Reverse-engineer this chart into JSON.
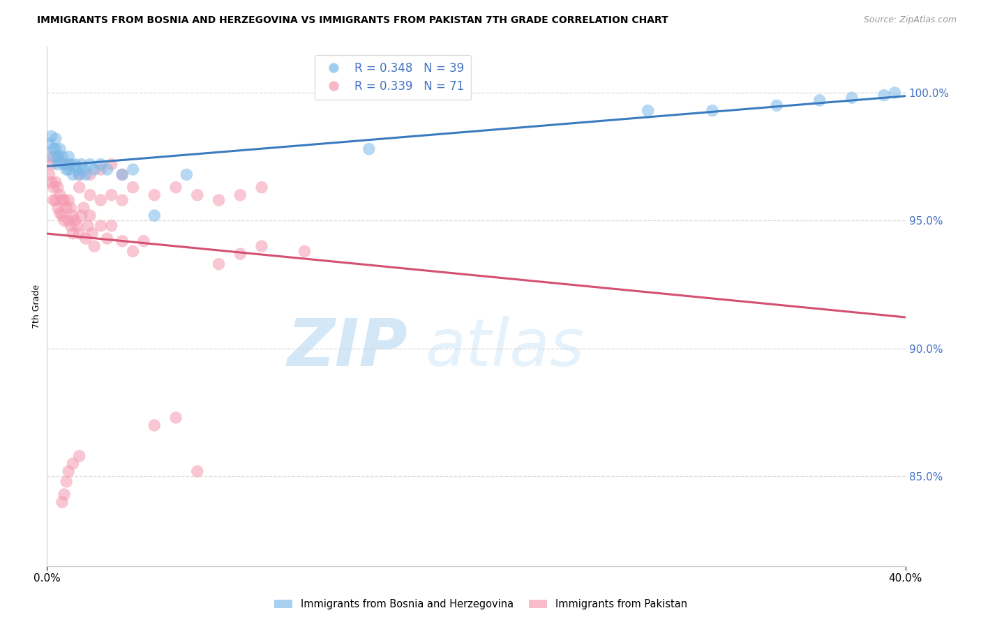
{
  "title": "IMMIGRANTS FROM BOSNIA AND HERZEGOVINA VS IMMIGRANTS FROM PAKISTAN 7TH GRADE CORRELATION CHART",
  "source": "Source: ZipAtlas.com",
  "label_bosnia": "Immigrants from Bosnia and Herzegovina",
  "label_pakistan": "Immigrants from Pakistan",
  "ylabel": "7th Grade",
  "xmin": 0.0,
  "xmax": 0.4,
  "ymin": 0.815,
  "ymax": 1.018,
  "ytick_vals": [
    0.85,
    0.9,
    0.95,
    1.0
  ],
  "legend_bosnia_r": "R = 0.348",
  "legend_bosnia_n": "N = 39",
  "legend_pakistan_r": "R = 0.339",
  "legend_pakistan_n": "N = 71",
  "color_bosnia": "#7ab8e8",
  "color_pakistan": "#f599b0",
  "trendline_bosnia": "#3a7bbf",
  "trendline_pakistan": "#d45070",
  "watermark_zip": "ZIP",
  "watermark_atlas": "atlas",
  "bosnia_x": [
    0.001,
    0.002,
    0.003,
    0.003,
    0.004,
    0.004,
    0.005,
    0.005,
    0.006,
    0.006,
    0.007,
    0.008,
    0.009,
    0.01,
    0.01,
    0.011,
    0.012,
    0.013,
    0.014,
    0.015,
    0.016,
    0.017,
    0.018,
    0.02,
    0.022,
    0.025,
    0.028,
    0.035,
    0.04,
    0.05,
    0.065,
    0.15,
    0.28,
    0.31,
    0.34,
    0.36,
    0.375,
    0.39,
    0.395
  ],
  "bosnia_y": [
    0.98,
    0.983,
    0.978,
    0.975,
    0.982,
    0.978,
    0.975,
    0.972,
    0.978,
    0.973,
    0.975,
    0.972,
    0.97,
    0.975,
    0.97,
    0.972,
    0.968,
    0.972,
    0.97,
    0.968,
    0.972,
    0.97,
    0.968,
    0.972,
    0.97,
    0.972,
    0.97,
    0.968,
    0.97,
    0.952,
    0.968,
    0.978,
    0.993,
    0.993,
    0.995,
    0.997,
    0.998,
    0.999,
    1.0
  ],
  "pakistan_x": [
    0.001,
    0.001,
    0.002,
    0.002,
    0.003,
    0.003,
    0.004,
    0.004,
    0.005,
    0.005,
    0.006,
    0.006,
    0.007,
    0.007,
    0.008,
    0.008,
    0.009,
    0.01,
    0.01,
    0.011,
    0.011,
    0.012,
    0.012,
    0.013,
    0.014,
    0.015,
    0.016,
    0.017,
    0.018,
    0.019,
    0.02,
    0.021,
    0.022,
    0.025,
    0.028,
    0.03,
    0.035,
    0.04,
    0.045,
    0.05,
    0.06,
    0.07,
    0.08,
    0.09,
    0.1,
    0.12,
    0.015,
    0.02,
    0.025,
    0.03,
    0.035,
    0.04,
    0.05,
    0.06,
    0.07,
    0.08,
    0.09,
    0.1,
    0.02,
    0.025,
    0.03,
    0.035,
    0.005,
    0.01,
    0.015,
    0.007,
    0.008,
    0.009,
    0.01,
    0.012,
    0.015
  ],
  "pakistan_y": [
    0.975,
    0.968,
    0.972,
    0.965,
    0.963,
    0.958,
    0.965,
    0.958,
    0.963,
    0.955,
    0.96,
    0.953,
    0.958,
    0.952,
    0.958,
    0.95,
    0.955,
    0.958,
    0.95,
    0.955,
    0.948,
    0.952,
    0.945,
    0.95,
    0.948,
    0.945,
    0.952,
    0.955,
    0.943,
    0.948,
    0.952,
    0.945,
    0.94,
    0.948,
    0.943,
    0.948,
    0.942,
    0.938,
    0.942,
    0.87,
    0.873,
    0.852,
    0.933,
    0.937,
    0.94,
    0.938,
    0.963,
    0.96,
    0.958,
    0.96,
    0.958,
    0.963,
    0.96,
    0.963,
    0.96,
    0.958,
    0.96,
    0.963,
    0.968,
    0.97,
    0.972,
    0.968,
    0.975,
    0.972,
    0.968,
    0.84,
    0.843,
    0.848,
    0.852,
    0.855,
    0.858
  ]
}
